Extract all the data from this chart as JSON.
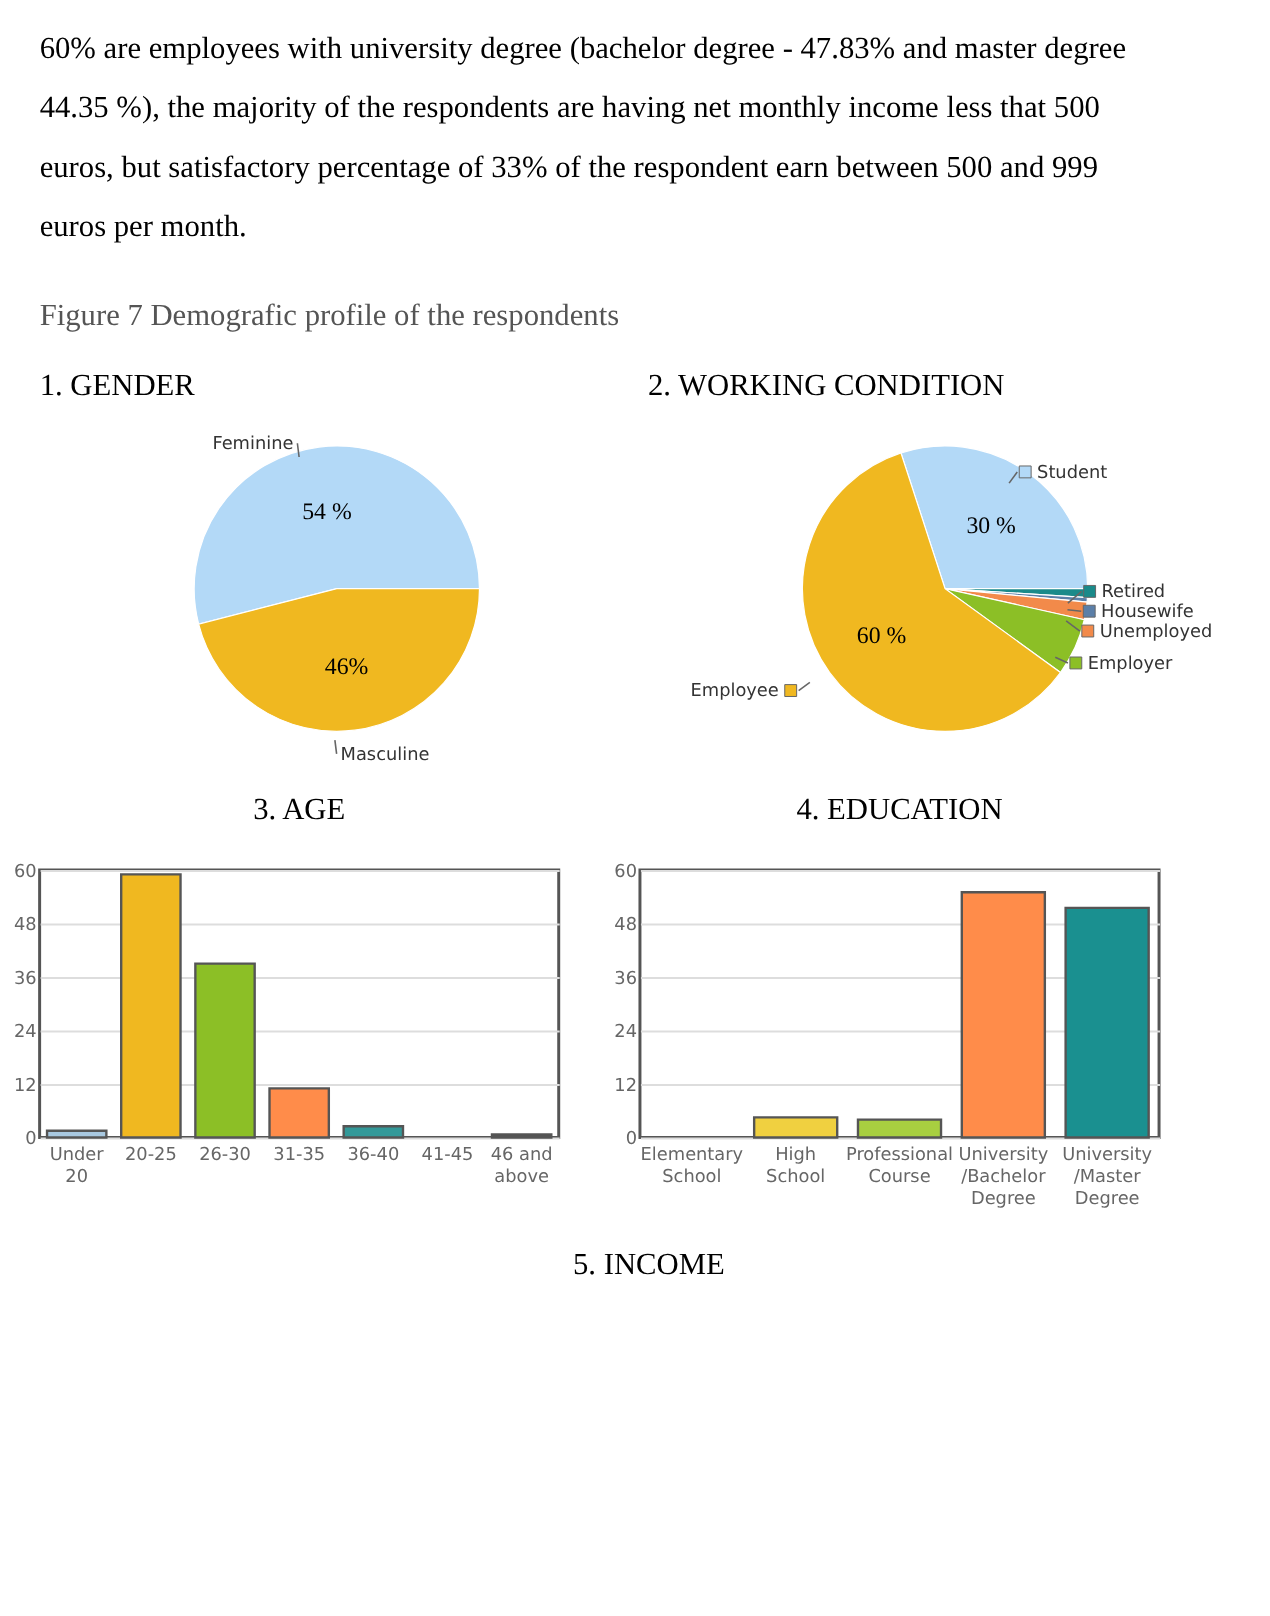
{
  "chart_data": [
    {
      "type": "other",
      "annotations": [
        "60% are employees with university degree (bachelor degree - 47.83% and master degree",
        "44.35 %), the majority of the respondents are having net monthly income less that 500",
        "euros, but satisfactory percentage of 33% of the respondent earn between 500 and 999",
        "euros per month.",
        "Figure 7  Demografic profile of the respondents"
      ]
    },
    {
      "type": "pie",
      "title": "1.   GENDER",
      "categories": [
        "Feminine",
        "Masculine"
      ],
      "values": [
        54,
        46
      ],
      "colors": [
        "#b3d9f7",
        "#f0b820"
      ],
      "value_labels": [
        "54 %",
        "46%"
      ]
    },
    {
      "type": "pie",
      "title": "2.  WORKING CONDITION",
      "categories": [
        "Student",
        "Retired",
        "Housewife",
        "Unemployed",
        "Employer",
        "Employee"
      ],
      "values": [
        30,
        1,
        0.5,
        2,
        6.5,
        60
      ],
      "colors": [
        "#b3d9f7",
        "#1a8a8a",
        "#5b7fa8",
        "#f28a4a",
        "#8cbf26",
        "#f0b820"
      ],
      "value_labels": [
        "30 %",
        null,
        null,
        null,
        null,
        "60 %"
      ],
      "legend": "right"
    },
    {
      "type": "bar",
      "title": "3.   AGE",
      "categories": [
        "Under 20",
        "20-25",
        "26-30",
        "31-35",
        "36-40",
        "41-45",
        "46 and above"
      ],
      "values": [
        1.5,
        59,
        39,
        11,
        2.5,
        0,
        0.7
      ],
      "colors": [
        "#a8c8e0",
        "#f0b820",
        "#8cbf26",
        "#ff8c4a",
        "#339999",
        "#999999",
        "#555555"
      ],
      "ylim": [
        0,
        60
      ],
      "yticks": [
        0,
        12,
        24,
        36,
        48,
        60
      ],
      "grid": "y"
    },
    {
      "type": "bar",
      "title": "4.  EDUCATION",
      "categories": [
        "Elementary School",
        "High School",
        "Professional Course",
        "University /Bachelor Degree",
        "University /Master Degree"
      ],
      "values": [
        0,
        4.5,
        4,
        55,
        51.5
      ],
      "colors": [
        "#a8c8e0",
        "#f0d040",
        "#a8cf40",
        "#ff8c4a",
        "#1a9090"
      ],
      "ylim": [
        0,
        60
      ],
      "yticks": [
        0,
        12,
        24,
        36,
        48,
        60
      ],
      "grid": "y"
    },
    {
      "type": "other",
      "title": "5.   INCOME"
    }
  ]
}
